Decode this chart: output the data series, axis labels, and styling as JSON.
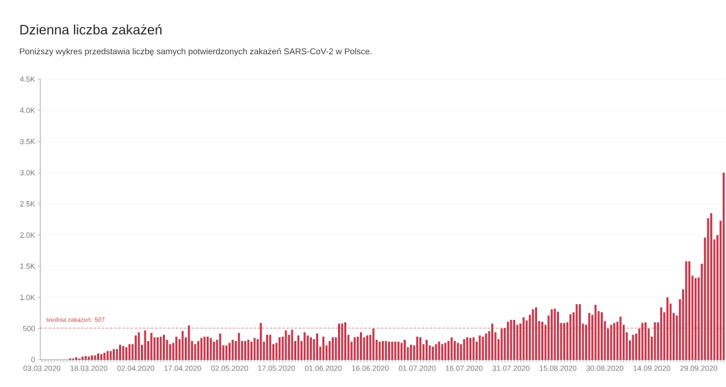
{
  "chart_data": {
    "type": "bar",
    "title": "Dzienna liczba zakażeń",
    "subtitle": "Poniższy wykres przedstawia liczbę samych potwierdzonych zakażeń SARS-CoV-2 w Polsce.",
    "categories": [
      "03.03.2020",
      null,
      null,
      null,
      null,
      null,
      null,
      null,
      null,
      null,
      null,
      null,
      null,
      null,
      null,
      "18.03.2020",
      null,
      null,
      null,
      null,
      null,
      null,
      null,
      null,
      null,
      null,
      null,
      null,
      null,
      null,
      "02.04.2020",
      null,
      null,
      null,
      null,
      null,
      null,
      null,
      null,
      null,
      null,
      null,
      null,
      null,
      null,
      "17.04.2020",
      null,
      null,
      null,
      null,
      null,
      null,
      null,
      null,
      null,
      null,
      null,
      null,
      null,
      null,
      "02.05.2020",
      null,
      null,
      null,
      null,
      null,
      null,
      null,
      null,
      null,
      null,
      null,
      null,
      null,
      null,
      "17.05.2020",
      null,
      null,
      null,
      null,
      null,
      null,
      null,
      null,
      null,
      null,
      null,
      null,
      null,
      null,
      "01.06.2020",
      null,
      null,
      null,
      null,
      null,
      null,
      null,
      null,
      null,
      null,
      null,
      null,
      null,
      null,
      "16.06.2020",
      null,
      null,
      null,
      null,
      null,
      null,
      null,
      null,
      null,
      null,
      null,
      null,
      null,
      null,
      "01.07.2020",
      null,
      null,
      null,
      null,
      null,
      null,
      null,
      null,
      null,
      null,
      null,
      null,
      null,
      null,
      "16.07.2020",
      null,
      null,
      null,
      null,
      null,
      null,
      null,
      null,
      null,
      null,
      null,
      null,
      null,
      null,
      "31.07.2020",
      null,
      null,
      null,
      null,
      null,
      null,
      null,
      null,
      null,
      null,
      null,
      null,
      null,
      null,
      "15.08.2020",
      null,
      null,
      null,
      null,
      null,
      null,
      null,
      null,
      null,
      null,
      null,
      null,
      null,
      null,
      "30.08.2020",
      null,
      null,
      null,
      null,
      null,
      null,
      null,
      null,
      null,
      null,
      null,
      null,
      null,
      null,
      "14.09.2020",
      null,
      null,
      null,
      null,
      null,
      null,
      null,
      null,
      null,
      null,
      null,
      null,
      null,
      null,
      "29.09.2020",
      null,
      null,
      null,
      null,
      null,
      null,
      null,
      null
    ],
    "values": [
      0,
      0,
      0,
      0,
      0,
      0,
      0,
      0,
      0,
      20,
      20,
      40,
      20,
      50,
      60,
      50,
      70,
      70,
      100,
      90,
      110,
      140,
      140,
      170,
      170,
      240,
      220,
      200,
      250,
      250,
      390,
      440,
      240,
      470,
      300,
      430,
      360,
      360,
      370,
      400,
      320,
      250,
      270,
      370,
      330,
      460,
      360,
      550,
      300,
      250,
      300,
      350,
      370,
      370,
      350,
      290,
      320,
      420,
      230,
      230,
      270,
      320,
      300,
      430,
      300,
      300,
      320,
      290,
      350,
      330,
      590,
      290,
      400,
      400,
      250,
      270,
      360,
      370,
      470,
      400,
      480,
      300,
      390,
      300,
      440,
      390,
      360,
      330,
      420,
      210,
      370,
      230,
      300,
      360,
      360,
      580,
      580,
      600,
      400,
      290,
      360,
      370,
      440,
      360,
      390,
      400,
      500,
      320,
      290,
      300,
      300,
      290,
      290,
      290,
      290,
      270,
      320,
      200,
      240,
      230,
      370,
      360,
      250,
      320,
      230,
      210,
      250,
      290,
      250,
      270,
      300,
      360,
      300,
      270,
      250,
      330,
      360,
      350,
      360,
      290,
      390,
      370,
      420,
      460,
      580,
      440,
      330,
      500,
      510,
      610,
      640,
      640,
      560,
      580,
      680,
      630,
      720,
      810,
      840,
      620,
      610,
      560,
      710,
      810,
      820,
      770,
      590,
      590,
      600,
      730,
      760,
      890,
      890,
      580,
      560,
      750,
      720,
      880,
      780,
      760,
      620,
      500,
      560,
      590,
      610,
      690,
      560,
      440,
      310,
      400,
      420,
      500,
      590,
      600,
      500,
      370,
      600,
      600,
      840,
      760,
      1000,
      900,
      750,
      710,
      970,
      1130,
      1580,
      1580,
      1350,
      1310,
      1320,
      1540,
      1960,
      2270,
      2350,
      1930,
      2000,
      2230,
      3000
    ],
    "color": "#c9374b",
    "ylim": [
      0,
      4500
    ],
    "yticks": [
      0,
      500,
      {
        "value": 1000,
        "label": "1.0K"
      },
      {
        "value": 1500,
        "label": "1.5K"
      },
      {
        "value": 2000,
        "label": "2.0K"
      },
      {
        "value": 2500,
        "label": "2.5K"
      },
      {
        "value": 3000,
        "label": "3.0K"
      },
      {
        "value": 3500,
        "label": "3.5K"
      },
      {
        "value": 4000,
        "label": "4.0K"
      },
      {
        "value": 4500,
        "label": "4.5K"
      }
    ],
    "grid": "y",
    "ref_lines": [
      {
        "axis": "y",
        "value": 507,
        "label": "średnia zakażeń: 507",
        "color": "#c0504d",
        "line_style": "dashed"
      }
    ]
  }
}
